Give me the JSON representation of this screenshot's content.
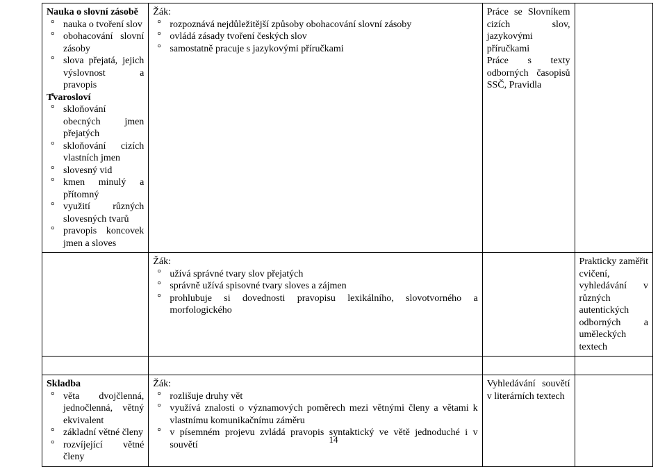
{
  "sections": {
    "nauka": {
      "heading": "Nauka o slovní zásobě",
      "col1_items": [
        "nauka o tvoření slov",
        "obohacování slovní zásoby",
        "slova přejatá, jejich výslovnost a pravopis",
        ""
      ],
      "col2_lead": "Žák:",
      "col2_items": [
        "rozpoznává nejdůležitější způsoby obohacování slovní zásoby",
        "ovládá zásady tvoření českých slov",
        "samostatně pracuje s jazykovými příručkami"
      ],
      "col3_text": "Práce se Slovníkem cizích slov, jazykovými příručkami\nPráce s texty odborných časopisů SSČ, Pravidla",
      "col4_text": ""
    },
    "tvaroslovi": {
      "heading": "Tvarosloví",
      "col1_items": [
        "skloňování obecných jmen přejatých",
        "skloňování cizích vlastních jmen",
        "slovesný vid",
        "kmen minulý a přítomný",
        "využití různých slovesných tvarů",
        "pravopis koncovek jmen a sloves"
      ],
      "col2_lead": "Žák:",
      "col2_items": [
        "užívá správné tvary slov přejatých",
        "správně užívá spisovné tvary sloves a zájmen",
        "prohlubuje si dovednosti pravopisu lexikálního, slovotvorného a morfologického"
      ],
      "col3_text": "",
      "col4_text": "Prakticky zaměřit cvičení, vyhledávání v různých autentických odborných a uměleckých textech"
    },
    "skladba": {
      "heading": "Skladba",
      "col1_items": [
        "věta dvojčlenná, jednočlenná, větný ekvivalent",
        "základní větné členy",
        "rozvíjející větné členy"
      ],
      "col2_lead": "Žák:",
      "col2_items": [
        "rozlišuje druhy vět",
        "využívá znalosti o významových poměrech mezi větnými členy a větami k vlastnímu komunikačnímu záměru",
        "v písemném projevu zvládá pravopis syntaktický ve větě jednoduché i v souvětí"
      ],
      "col3_text": "Vyhledávání souvětí v literárních textech",
      "col4_text": ""
    }
  },
  "page_number": "14"
}
